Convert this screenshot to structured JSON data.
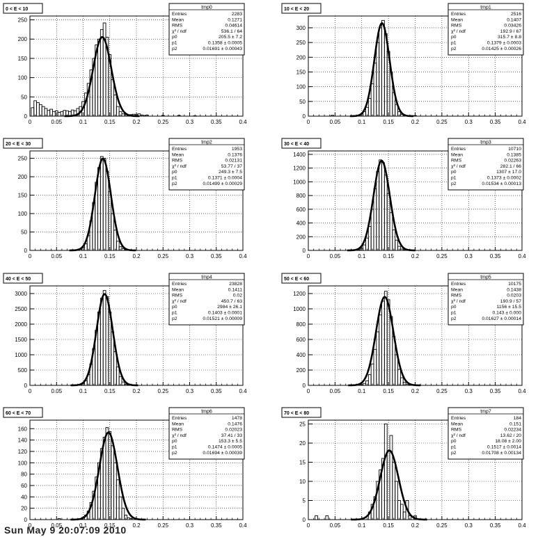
{
  "footer": "Sun May  9 20:07:09 2010",
  "stat_labels": {
    "entries": "Entries",
    "mean": "Mean",
    "rms": "RMS",
    "chi2": "χ² / ndf",
    "p0": "p0",
    "p1": "p1",
    "p2": "p2"
  },
  "x_ticks": [
    "0",
    "0.05",
    "0.1",
    "0.15",
    "0.2",
    "0.25",
    "0.3",
    "0.35",
    "0.4"
  ],
  "chart_data": [
    {
      "type": "histogram",
      "title": "0 < E < 10",
      "hist_name": "tmp0",
      "xlim": [
        0,
        0.4
      ],
      "ylim": [
        0,
        260
      ],
      "yticks": [
        0,
        50,
        100,
        150,
        200,
        250
      ],
      "bin_width": 0.005,
      "bins": [
        [
          0.005,
          22
        ],
        [
          0.01,
          40
        ],
        [
          0.015,
          35
        ],
        [
          0.02,
          30
        ],
        [
          0.025,
          25
        ],
        [
          0.03,
          20
        ],
        [
          0.035,
          15
        ],
        [
          0.04,
          18
        ],
        [
          0.045,
          12
        ],
        [
          0.05,
          14
        ],
        [
          0.055,
          10
        ],
        [
          0.06,
          12
        ],
        [
          0.065,
          15
        ],
        [
          0.07,
          14
        ],
        [
          0.075,
          12
        ],
        [
          0.08,
          16
        ],
        [
          0.085,
          14
        ],
        [
          0.09,
          20
        ],
        [
          0.095,
          25
        ],
        [
          0.1,
          38
        ],
        [
          0.105,
          60
        ],
        [
          0.11,
          85
        ],
        [
          0.115,
          120
        ],
        [
          0.12,
          150
        ],
        [
          0.125,
          185
        ],
        [
          0.13,
          200
        ],
        [
          0.135,
          225
        ],
        [
          0.14,
          242
        ],
        [
          0.145,
          205
        ],
        [
          0.15,
          160
        ],
        [
          0.155,
          95
        ],
        [
          0.16,
          55
        ],
        [
          0.165,
          25
        ],
        [
          0.17,
          12
        ],
        [
          0.175,
          6
        ],
        [
          0.18,
          4
        ],
        [
          0.185,
          3
        ],
        [
          0.19,
          4
        ],
        [
          0.195,
          5
        ],
        [
          0.2,
          4
        ],
        [
          0.205,
          6
        ],
        [
          0.21,
          3
        ],
        [
          0.215,
          2
        ],
        [
          0.22,
          3
        ],
        [
          0.25,
          2
        ],
        [
          0.28,
          2
        ],
        [
          0.31,
          1
        ]
      ],
      "stats": {
        "entries": "2283",
        "mean": "0.1271",
        "rms": "0.04614",
        "chi2": "536.1 / 64",
        "p0": "205.5 ± 7.2",
        "p1": "0.1358 ± 0.0005",
        "p2": "0.01691 ± 0.00043"
      },
      "fit": {
        "p0": 205.5,
        "p1": 0.1358,
        "p2": 0.01691
      }
    },
    {
      "type": "histogram",
      "title": "10 < E < 20",
      "hist_name": "tmp1",
      "xlim": [
        0,
        0.4
      ],
      "ylim": [
        0,
        340
      ],
      "yticks": [
        0,
        50,
        100,
        150,
        200,
        250,
        300
      ],
      "bin_width": 0.005,
      "bins": [
        [
          0.045,
          3
        ],
        [
          0.085,
          2
        ],
        [
          0.095,
          4
        ],
        [
          0.1,
          8
        ],
        [
          0.105,
          15
        ],
        [
          0.11,
          30
        ],
        [
          0.115,
          60
        ],
        [
          0.12,
          110
        ],
        [
          0.125,
          180
        ],
        [
          0.13,
          250
        ],
        [
          0.135,
          300
        ],
        [
          0.14,
          325
        ],
        [
          0.145,
          280
        ],
        [
          0.15,
          220
        ],
        [
          0.155,
          150
        ],
        [
          0.16,
          80
        ],
        [
          0.165,
          40
        ],
        [
          0.17,
          15
        ],
        [
          0.175,
          6
        ],
        [
          0.18,
          3
        ],
        [
          0.19,
          2
        ],
        [
          0.2,
          2
        ]
      ],
      "stats": {
        "entries": "2516",
        "mean": "0.1407",
        "rms": "0.03426",
        "chi2": "192.9 / 67",
        "p0": "315.7 ± 8.8",
        "p1": "0.1379 ± 0.0003",
        "p2": "0.01425 ± 0.00026"
      },
      "fit": {
        "p0": 315.7,
        "p1": 0.1379,
        "p2": 0.01425
      }
    },
    {
      "type": "histogram",
      "title": "20 < E < 30",
      "hist_name": "tmp2",
      "xlim": [
        0,
        0.4
      ],
      "ylim": [
        0,
        270
      ],
      "yticks": [
        0,
        50,
        100,
        150,
        200,
        250
      ],
      "bin_width": 0.005,
      "bins": [
        [
          0.095,
          3
        ],
        [
          0.1,
          8
        ],
        [
          0.105,
          18
        ],
        [
          0.11,
          40
        ],
        [
          0.115,
          80
        ],
        [
          0.12,
          130
        ],
        [
          0.125,
          185
        ],
        [
          0.13,
          225
        ],
        [
          0.135,
          255
        ],
        [
          0.14,
          250
        ],
        [
          0.145,
          215
        ],
        [
          0.15,
          160
        ],
        [
          0.155,
          100
        ],
        [
          0.16,
          55
        ],
        [
          0.165,
          25
        ],
        [
          0.17,
          10
        ],
        [
          0.175,
          5
        ],
        [
          0.18,
          2
        ]
      ],
      "stats": {
        "entries": "1953",
        "mean": "0.1376",
        "rms": "0.02131",
        "chi2": "53.77 / 37",
        "p0": "249.3 ± 7.5",
        "p1": "0.1371 ± 0.0004",
        "p2": "0.01499 ± 0.00029"
      },
      "fit": {
        "p0": 249.3,
        "p1": 0.1371,
        "p2": 0.01499
      }
    },
    {
      "type": "histogram",
      "title": "30 < E < 40",
      "hist_name": "tmp3",
      "xlim": [
        0,
        0.4
      ],
      "ylim": [
        0,
        1450
      ],
      "yticks": [
        0,
        200,
        400,
        600,
        800,
        1000,
        1200,
        1400
      ],
      "bin_width": 0.005,
      "bins": [
        [
          0.095,
          10
        ],
        [
          0.1,
          30
        ],
        [
          0.105,
          80
        ],
        [
          0.11,
          180
        ],
        [
          0.115,
          350
        ],
        [
          0.12,
          600
        ],
        [
          0.125,
          900
        ],
        [
          0.13,
          1150
        ],
        [
          0.135,
          1320
        ],
        [
          0.14,
          1280
        ],
        [
          0.145,
          1100
        ],
        [
          0.15,
          830
        ],
        [
          0.155,
          550
        ],
        [
          0.16,
          300
        ],
        [
          0.165,
          150
        ],
        [
          0.17,
          60
        ],
        [
          0.175,
          20
        ],
        [
          0.18,
          8
        ]
      ],
      "stats": {
        "entries": "10710",
        "mean": "0.1385",
        "rms": "0.02263",
        "chi2": "282.1 / 66",
        "p0": "1307 ± 17.0",
        "p1": "0.1373 ± 0.0002",
        "p2": "0.01534 ± 0.00013"
      },
      "fit": {
        "p0": 1307,
        "p1": 0.1373,
        "p2": 0.01534
      }
    },
    {
      "type": "histogram",
      "title": "40 < E < 50",
      "hist_name": "tmp4",
      "xlim": [
        0,
        0.4
      ],
      "ylim": [
        0,
        3250
      ],
      "yticks": [
        0,
        500,
        1000,
        1500,
        2000,
        2500,
        3000
      ],
      "bin_width": 0.005,
      "bins": [
        [
          0.095,
          20
        ],
        [
          0.1,
          60
        ],
        [
          0.105,
          150
        ],
        [
          0.11,
          350
        ],
        [
          0.115,
          700
        ],
        [
          0.12,
          1200
        ],
        [
          0.125,
          1800
        ],
        [
          0.13,
          2400
        ],
        [
          0.135,
          2850
        ],
        [
          0.14,
          3100
        ],
        [
          0.145,
          2900
        ],
        [
          0.15,
          2400
        ],
        [
          0.155,
          1750
        ],
        [
          0.16,
          1100
        ],
        [
          0.165,
          600
        ],
        [
          0.17,
          280
        ],
        [
          0.175,
          110
        ],
        [
          0.18,
          40
        ],
        [
          0.185,
          12
        ]
      ],
      "stats": {
        "entries": "23828",
        "mean": "0.1411",
        "rms": "0.02",
        "chi2": "450.7 / 63",
        "p0": "2984 ± 26.1",
        "p1": "0.1403 ± 0.0001",
        "p2": "0.01521 ± 0.00009"
      },
      "fit": {
        "p0": 2984,
        "p1": 0.1403,
        "p2": 0.01521
      }
    },
    {
      "type": "histogram",
      "title": "50 < E < 60",
      "hist_name": "tmp5",
      "xlim": [
        0,
        0.4
      ],
      "ylim": [
        0,
        1300
      ],
      "yticks": [
        0,
        200,
        400,
        600,
        800,
        1000,
        1200
      ],
      "bin_width": 0.005,
      "bins": [
        [
          0.1,
          8
        ],
        [
          0.105,
          25
        ],
        [
          0.11,
          60
        ],
        [
          0.115,
          140
        ],
        [
          0.12,
          280
        ],
        [
          0.125,
          470
        ],
        [
          0.13,
          700
        ],
        [
          0.135,
          920
        ],
        [
          0.14,
          1100
        ],
        [
          0.145,
          1230
        ],
        [
          0.15,
          1120
        ],
        [
          0.155,
          900
        ],
        [
          0.16,
          640
        ],
        [
          0.165,
          400
        ],
        [
          0.17,
          210
        ],
        [
          0.175,
          100
        ],
        [
          0.18,
          40
        ],
        [
          0.185,
          15
        ],
        [
          0.19,
          5
        ]
      ],
      "stats": {
        "entries": "10175",
        "mean": "0.1438",
        "rms": "0.0203",
        "chi2": "190.9 / 57",
        "p0": "1156 ± 15.5",
        "p1": "0.143 ± 0.000",
        "p2": "0.01627 ± 0.00014"
      },
      "fit": {
        "p0": 1156,
        "p1": 0.143,
        "p2": 0.01627
      }
    },
    {
      "type": "histogram",
      "title": "60 < E < 70",
      "hist_name": "tmp6",
      "xlim": [
        0,
        0.4
      ],
      "ylim": [
        0,
        175
      ],
      "yticks": [
        0,
        20,
        40,
        60,
        80,
        100,
        120,
        140,
        160
      ],
      "bin_width": 0.005,
      "bins": [
        [
          0.055,
          2
        ],
        [
          0.1,
          4
        ],
        [
          0.105,
          8
        ],
        [
          0.11,
          15
        ],
        [
          0.115,
          30
        ],
        [
          0.12,
          50
        ],
        [
          0.125,
          75
        ],
        [
          0.13,
          100
        ],
        [
          0.135,
          125
        ],
        [
          0.14,
          145
        ],
        [
          0.145,
          162
        ],
        [
          0.15,
          155
        ],
        [
          0.155,
          130
        ],
        [
          0.16,
          100
        ],
        [
          0.165,
          70
        ],
        [
          0.17,
          40
        ],
        [
          0.175,
          20
        ],
        [
          0.18,
          8
        ],
        [
          0.185,
          3
        ],
        [
          0.19,
          2
        ]
      ],
      "stats": {
        "entries": "1478",
        "mean": "0.1476",
        "rms": "0.02023",
        "chi2": "37.41 / 33",
        "p0": "153.3 ± 5.5",
        "p1": "0.1474 ± 0.0005",
        "p2": "0.01694 ± 0.00039"
      },
      "fit": {
        "p0": 153.3,
        "p1": 0.1474,
        "p2": 0.01694
      }
    },
    {
      "type": "histogram",
      "title": "70 < E < 80",
      "hist_name": "tmp7",
      "xlim": [
        0,
        0.4
      ],
      "ylim": [
        0,
        26
      ],
      "yticks": [
        0,
        5,
        10,
        15,
        20,
        25
      ],
      "bin_width": 0.005,
      "bins": [
        [
          0.015,
          1
        ],
        [
          0.035,
          1
        ],
        [
          0.115,
          2
        ],
        [
          0.12,
          4
        ],
        [
          0.125,
          6
        ],
        [
          0.13,
          10
        ],
        [
          0.135,
          13
        ],
        [
          0.14,
          16
        ],
        [
          0.145,
          25
        ],
        [
          0.15,
          18
        ],
        [
          0.155,
          22
        ],
        [
          0.16,
          15
        ],
        [
          0.165,
          10
        ],
        [
          0.17,
          5
        ],
        [
          0.175,
          4
        ],
        [
          0.18,
          2
        ],
        [
          0.185,
          5
        ],
        [
          0.19,
          1
        ],
        [
          0.2,
          1
        ]
      ],
      "stats": {
        "entries": "184",
        "mean": "0.151",
        "rms": "0.02234",
        "chi2": "13.62 / 20",
        "p0": "18.08 ± 2.00",
        "p1": "0.1517 ± 0.0014",
        "p2": "0.01708 ± 0.00134"
      },
      "fit": {
        "p0": 18.08,
        "p1": 0.1517,
        "p2": 0.01708
      }
    }
  ]
}
